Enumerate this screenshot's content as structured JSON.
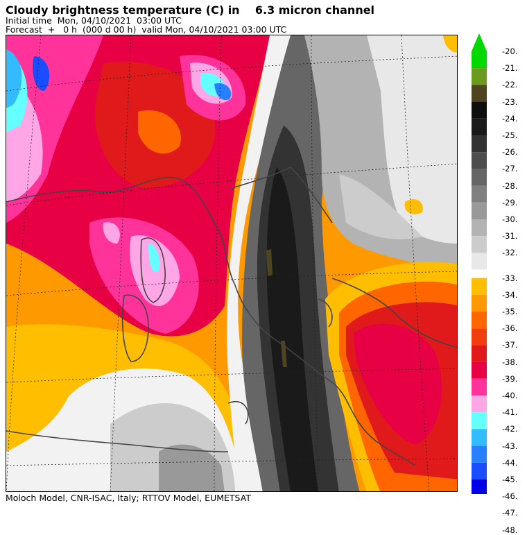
{
  "header": {
    "title": "Cloudy brightness temperature (C) in    6.3 micron channel",
    "initial": "Initial time  Mon, 04/10/2021  03:00 UTC",
    "forecast": "Forecast  +   0 h  (000 d 00 h)  valid Mon, 04/10/2021 03:00 UTC"
  },
  "footer": {
    "credit": "Moloch Model, CNR-ISAC, Italy; RTTOV Model, EUMETSAT"
  },
  "legend": {
    "upper": [
      {
        "label": "-20.",
        "color": "#00d800"
      },
      {
        "label": "-21.",
        "color": "#6b9a1e"
      },
      {
        "label": "-22.",
        "color": "#4f4420"
      },
      {
        "label": "-23.",
        "color": "#0e0e0e"
      },
      {
        "label": "-24.",
        "color": "#1a1a1a"
      },
      {
        "label": "-25.",
        "color": "#333333"
      },
      {
        "label": "-26.",
        "color": "#4d4d4d"
      },
      {
        "label": "-27.",
        "color": "#666666"
      },
      {
        "label": "-28.",
        "color": "#808080"
      },
      {
        "label": "-29.",
        "color": "#999999"
      },
      {
        "label": "-30.",
        "color": "#b3b3b3"
      },
      {
        "label": "-31.",
        "color": "#cccccc"
      },
      {
        "label": "-32.",
        "color": "#e8e8e8"
      }
    ],
    "lower": [
      {
        "label": "-33.",
        "color": "#ffbf00"
      },
      {
        "label": "-34.",
        "color": "#ff9900"
      },
      {
        "label": "-35.",
        "color": "#ff6600"
      },
      {
        "label": "-36.",
        "color": "#f23d0f"
      },
      {
        "label": "-37.",
        "color": "#e01a1a"
      },
      {
        "label": "-38.",
        "color": "#e80045"
      },
      {
        "label": "-39.",
        "color": "#ff3399"
      },
      {
        "label": "-40.",
        "color": "#ffa6e6"
      },
      {
        "label": "-41.",
        "color": "#66ffff"
      },
      {
        "label": "-42.",
        "color": "#33bbff"
      },
      {
        "label": "-43.",
        "color": "#2680ff"
      },
      {
        "label": "-44.",
        "color": "#1a4dff"
      },
      {
        "label": "-45.",
        "color": "#0000e6"
      },
      {
        "label": "-46.",
        "color": "#1a00c8"
      },
      {
        "label": "-47.",
        "color": "#330099"
      },
      {
        "label": "-48.",
        "color": "#3a0099"
      }
    ]
  }
}
